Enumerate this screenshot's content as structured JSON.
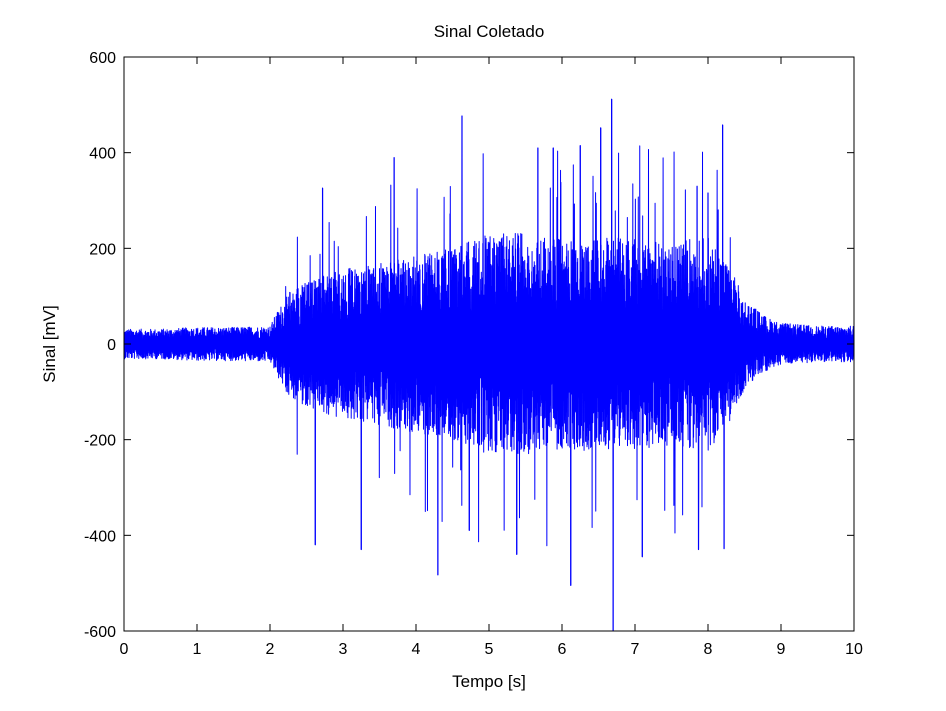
{
  "chart_data": {
    "type": "line",
    "title": "Sinal Coletado",
    "xlabel": "Tempo [s]",
    "ylabel": "Sinal [mV]",
    "xlim": [
      0,
      10
    ],
    "ylim": [
      -600,
      600
    ],
    "xticks": [
      0,
      1,
      2,
      3,
      4,
      5,
      6,
      7,
      8,
      9,
      10
    ],
    "xtick_labels": [
      "0",
      "1",
      "2",
      "3",
      "4",
      "5",
      "6",
      "7",
      "8",
      "9",
      "10"
    ],
    "yticks": [
      -600,
      -400,
      -200,
      0,
      200,
      400,
      600
    ],
    "ytick_labels": [
      "-600",
      "-400",
      "-200",
      "0",
      "200",
      "400",
      "600"
    ],
    "grid": false,
    "legend": "none",
    "series": [
      {
        "color": "#0000ff",
        "envelope": {
          "t": [
            0,
            0.5,
            1,
            1.5,
            2,
            2.1,
            2.3,
            2.6,
            3,
            3.5,
            4,
            4.5,
            5,
            5.5,
            6,
            6.5,
            7,
            7.5,
            8,
            8.3,
            8.5,
            8.8,
            9,
            9.5,
            10
          ],
          "amplitude": [
            25,
            25,
            28,
            28,
            30,
            55,
            95,
            110,
            125,
            135,
            150,
            160,
            185,
            185,
            175,
            180,
            175,
            170,
            180,
            130,
            75,
            45,
            35,
            30,
            30
          ]
        },
        "peaks": [
          {
            "t": 2.62,
            "v": -420
          },
          {
            "t": 3.25,
            "v": -430
          },
          {
            "t": 4.3,
            "v": -483
          },
          {
            "t": 4.63,
            "v": 477
          },
          {
            "t": 5.38,
            "v": -440
          },
          {
            "t": 5.88,
            "v": 410
          },
          {
            "t": 6.12,
            "v": -505
          },
          {
            "t": 6.25,
            "v": 415
          },
          {
            "t": 6.53,
            "v": 452
          },
          {
            "t": 6.68,
            "v": 512
          },
          {
            "t": 6.7,
            "v": -600
          },
          {
            "t": 8.2,
            "v": 458
          },
          {
            "t": 8.22,
            "v": -428
          },
          {
            "t": 2.72,
            "v": 326
          },
          {
            "t": 3.7,
            "v": 390
          },
          {
            "t": 5.67,
            "v": 410
          },
          {
            "t": 4.73,
            "v": -390
          },
          {
            "t": 7.85,
            "v": 330
          },
          {
            "t": 8.0,
            "v": 316
          },
          {
            "t": 7.87,
            "v": -430
          },
          {
            "t": 7.1,
            "v": -445
          }
        ]
      }
    ]
  }
}
